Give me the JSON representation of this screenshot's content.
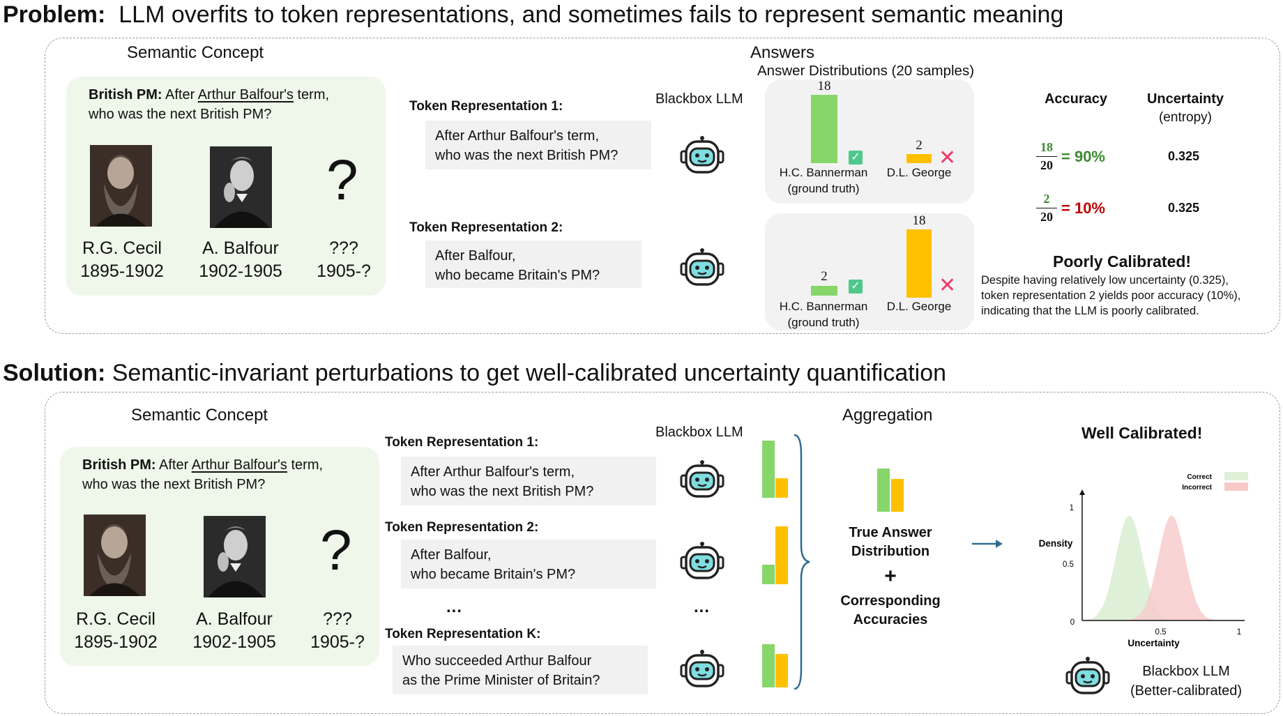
{
  "problem": {
    "title_bold": "Problem:",
    "title_rest": "LLM overfits to token representations, and sometimes fails to represent semantic meaning",
    "semantic_concept_label": "Semantic Concept",
    "answers_label": "Answers",
    "question_bold": "British PM:",
    "question_pre": "After",
    "question_underlined": "Arthur Balfour's",
    "question_post": "term,",
    "question_line2": "who was the next British PM?",
    "people": [
      {
        "name": "R.G. Cecil",
        "years": "1895-1902"
      },
      {
        "name": "A. Balfour",
        "years": "1902-1905"
      },
      {
        "name": "???",
        "years": "1905-?"
      }
    ],
    "unknown_mark": "?",
    "tokens": [
      {
        "heading": "Token Representation 1:",
        "line1": "After Arthur Balfour's term,",
        "line2": "who was the next British PM?"
      },
      {
        "heading": "Token Representation 2:",
        "line1": "After Balfour,",
        "line2": "who became Britain's PM?"
      }
    ],
    "blackbox_label": "Blackbox LLM",
    "dist_title": "Answer Distributions (20 samples)",
    "dists": [
      {
        "correct_count": "18",
        "wrong_count": "2",
        "correct_value": 18,
        "wrong_value": 2
      },
      {
        "correct_count": "2",
        "wrong_count": "18",
        "correct_value": 2,
        "wrong_value": 18
      }
    ],
    "answer_correct_line1": "H.C. Bannerman",
    "answer_correct_line2": "(ground truth)",
    "answer_wrong": "D.L. George",
    "accuracy_head": "Accuracy",
    "uncertainty_head": "Uncertainty",
    "uncertainty_sub": "(entropy)",
    "rows": [
      {
        "num": "18",
        "den": "20",
        "pct": "= 90%",
        "color": "#3a8a2e",
        "unc": "0.325"
      },
      {
        "num": "2",
        "den": "20",
        "pct": "= 10%",
        "color": "#c00000",
        "unc": "0.325"
      }
    ],
    "poor_title": "Poorly Calibrated!",
    "poor_line1": "Despite having relatively low uncertainty (0.325),",
    "poor_line2": "token representation 2 yields poor accuracy (10%),",
    "poor_line3": "indicating that the LLM is poorly calibrated."
  },
  "solution": {
    "title_bold": "Solution:",
    "title_rest": "Semantic-invariant perturbations to get well-calibrated uncertainty quantification",
    "semantic_concept_label": "Semantic Concept",
    "blackbox_label": "Blackbox LLM",
    "tokens": [
      {
        "heading": "Token Representation 1:",
        "line1": "After Arthur Balfour's term,",
        "line2": "who was the next British PM?"
      },
      {
        "heading": "Token Representation 2:",
        "line1": "After Balfour,",
        "line2": "who became Britain's PM?"
      },
      {
        "heading": "Token Representation K:",
        "line1": "Who succeeded Arthur Balfour",
        "line2": "as the Prime Minister of Britain?"
      }
    ],
    "ellipsis": "...",
    "aggregation_label": "Aggregation",
    "agg_line1": "True Answer",
    "agg_line2": "Distribution",
    "agg_plus": "+",
    "agg_line3": "Corresponding",
    "agg_line4": "Accuracies",
    "well_title": "Well Calibrated!",
    "bottom_bb_line1": "Blackbox LLM",
    "bottom_bb_line2": "(Better-calibrated)"
  },
  "chart_data": {
    "type": "area",
    "xlabel": "Uncertainty",
    "ylabel": "Density",
    "x_ticks": [
      "0",
      "0.5",
      "1"
    ],
    "y_ticks": [
      "1",
      "0.5",
      "0"
    ],
    "xlim": [
      0,
      1
    ],
    "ylim": [
      0,
      1.05
    ],
    "series": [
      {
        "name": "Correct",
        "mean": 0.3,
        "std": 0.085,
        "peak": 0.93,
        "color": "#dff0d8"
      },
      {
        "name": "Incorrect",
        "mean": 0.57,
        "std": 0.085,
        "peak": 0.93,
        "color": "#f8c9c9"
      }
    ],
    "legend": "top-right"
  }
}
